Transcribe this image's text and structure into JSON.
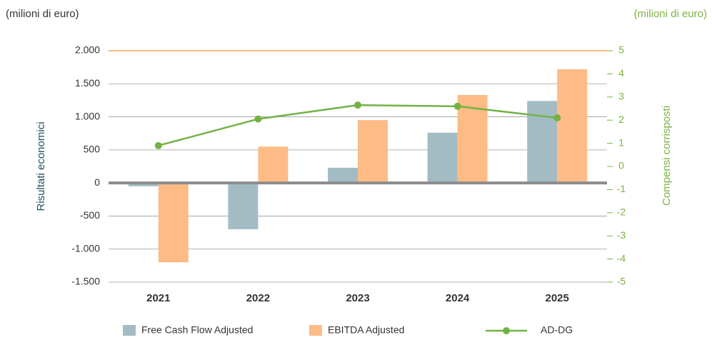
{
  "chart_data": {
    "type": "bar",
    "y_unit_label": "(milioni di euro)",
    "y2_unit_label": "(milioni di euro)",
    "ylabel": "Risultati economici",
    "y2label": "Compensi corrisposti",
    "categories": [
      "2021",
      "2022",
      "2023",
      "2024",
      "2025"
    ],
    "series": [
      {
        "name": "Free Cash Flow Adjusted",
        "type": "bar",
        "color": "#a3bcc4",
        "values": [
          -50,
          -700,
          230,
          760,
          1240
        ]
      },
      {
        "name": "EBITDA Adjusted",
        "type": "bar",
        "color": "#fdbb86",
        "values": [
          -1200,
          550,
          950,
          1330,
          1720
        ]
      },
      {
        "name": "AD-DG",
        "type": "line",
        "axis": "y2",
        "color": "#72b244",
        "values": [
          0.9,
          2.05,
          2.65,
          2.6,
          2.1
        ]
      }
    ],
    "ylim": [
      -1500,
      2000
    ],
    "yticks": [
      {
        "value": -1500,
        "label": "-1.500"
      },
      {
        "value": -1000,
        "label": "-1.000"
      },
      -500,
      0,
      500,
      {
        "value": 1000,
        "label": "1.000"
      },
      {
        "value": 1500,
        "label": "1.500"
      },
      {
        "value": 2000,
        "label": "2.000"
      }
    ],
    "y2lim": [
      -5,
      5
    ],
    "y2ticks": [
      -5,
      -4,
      -3,
      -2,
      -1,
      0,
      1,
      2,
      3,
      4,
      5
    ],
    "grid": true
  }
}
